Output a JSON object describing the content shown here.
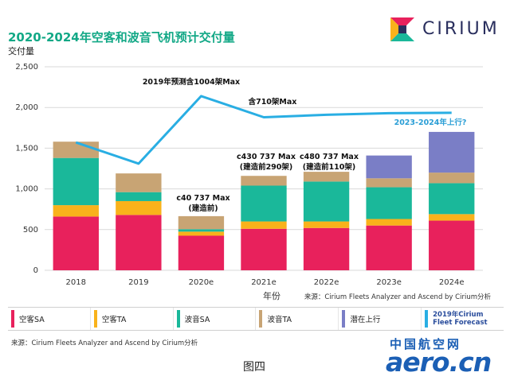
{
  "header": {
    "title": "2020-2024年空客和波音飞机预计交付量",
    "logo_text": "CIRIUM"
  },
  "chart_data": {
    "type": "bar",
    "stacked": true,
    "categories": [
      "2018",
      "2019",
      "2020e",
      "2021e",
      "2022e",
      "2023e",
      "2024e"
    ],
    "ylabel": "交付量",
    "xlabel": "年份",
    "ylim": [
      0,
      2500
    ],
    "yticks": [
      0,
      500,
      1000,
      1500,
      2000,
      2500
    ],
    "ytick_labels": [
      "0",
      "500",
      "1,000",
      "1,500",
      "2,000",
      "2,500"
    ],
    "grid": true,
    "series": [
      {
        "name": "空客SA",
        "color": "#e8215c",
        "values": [
          660,
          680,
          425,
          510,
          520,
          550,
          610
        ]
      },
      {
        "name": "空客TA",
        "color": "#f9b21b",
        "values": [
          140,
          170,
          50,
          90,
          80,
          80,
          80
        ]
      },
      {
        "name": "波音SA",
        "color": "#1ab89a",
        "values": [
          580,
          110,
          30,
          440,
          490,
          390,
          380
        ]
      },
      {
        "name": "波音TA",
        "color": "#c8a474",
        "values": [
          200,
          230,
          160,
          120,
          120,
          110,
          130
        ]
      },
      {
        "name": "潜在上行",
        "color": "#7a7ec6",
        "values": [
          0,
          0,
          0,
          0,
          0,
          280,
          500
        ]
      }
    ],
    "forecast_line": {
      "name": "2019年Cirium Fleet Forecast",
      "color": "#29aee3",
      "values": [
        1570,
        1310,
        2140,
        1880,
        1910,
        1930,
        1935
      ]
    },
    "annotations": [
      {
        "text": "2019年预测含1004架Max"
      },
      {
        "text": "含710架Max"
      },
      {
        "text": "2023-2024年上行?"
      },
      {
        "text": "c40 737 Max"
      },
      {
        "text": "(建造前)"
      },
      {
        "text": "c430 737 Max"
      },
      {
        "text": "(建造前290架)"
      },
      {
        "text": "c480 737 Max"
      },
      {
        "text": "(建造前110架)"
      }
    ],
    "source_note": "来源：Cirium Fleets Analyzer and Ascend by Cirium分析"
  },
  "legend": {
    "items": [
      {
        "label": "空客SA",
        "color": "#e8215c"
      },
      {
        "label": "空客TA",
        "color": "#f9b21b"
      },
      {
        "label": "波音SA",
        "color": "#1ab89a"
      },
      {
        "label": "波音TA",
        "color": "#c8a474"
      },
      {
        "label": "潜在上行",
        "color": "#7a7ec6"
      }
    ],
    "forecast_line1": "2019年Cirium",
    "forecast_line2": "Fleet Forecast"
  },
  "footer": {
    "source": "来源：Cirium Fleets Analyzer and Ascend by Cirium分析",
    "caption": "图四",
    "watermark_cn": "中国航空网",
    "watermark_en": "aero.cn"
  }
}
